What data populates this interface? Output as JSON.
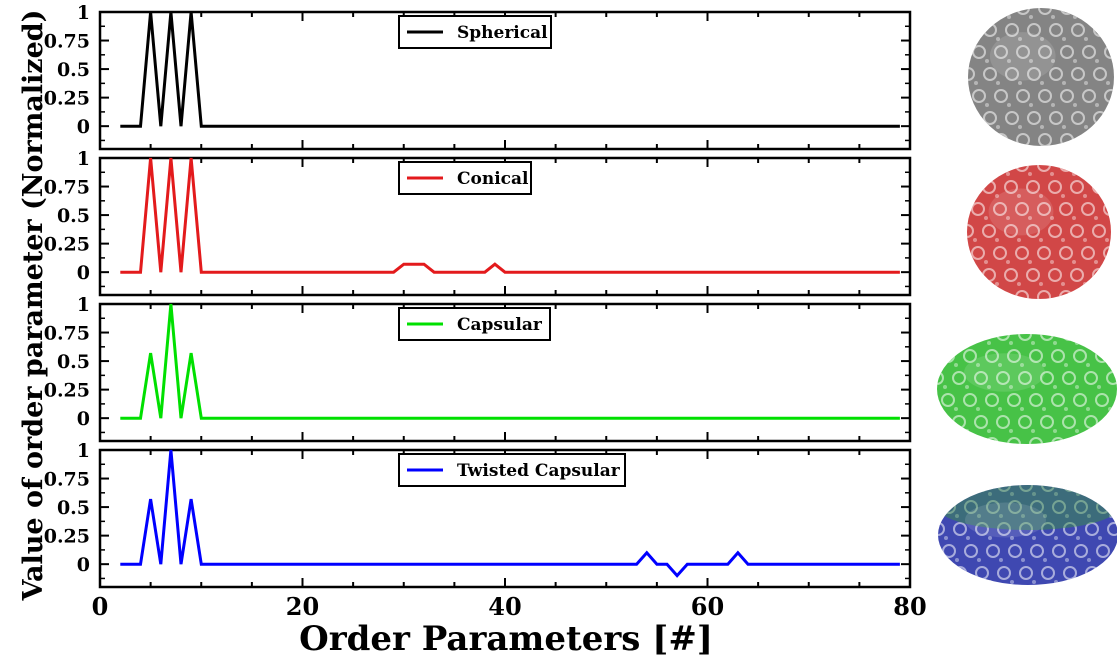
{
  "chart_data": [
    {
      "type": "line",
      "legend_placement": "top-center",
      "xlim": [
        0,
        80
      ],
      "ylim": [
        -0.2,
        1
      ],
      "yticks": [
        "0",
        "0.25",
        "0.5",
        "0.75",
        "1"
      ],
      "series": [
        {
          "name": "Spherical",
          "color": "#000000",
          "x": [
            2,
            4,
            5,
            6,
            7,
            8,
            9,
            10,
            79
          ],
          "y": [
            0,
            0,
            1,
            0,
            1,
            0,
            1,
            0,
            0
          ]
        }
      ]
    },
    {
      "type": "line",
      "legend_placement": "top-center",
      "xlim": [
        0,
        80
      ],
      "ylim": [
        -0.2,
        1
      ],
      "yticks": [
        "0",
        "0.25",
        "0.5",
        "0.75",
        "1"
      ],
      "series": [
        {
          "name": "Conical",
          "color": "#e31a1c",
          "x": [
            2,
            4,
            5,
            6,
            7,
            8,
            9,
            10,
            29,
            30,
            32,
            33,
            38,
            39,
            40,
            79
          ],
          "y": [
            0,
            0,
            1,
            0,
            1,
            0,
            1,
            0,
            0,
            0.07,
            0.07,
            0,
            0,
            0.07,
            0,
            0
          ]
        }
      ]
    },
    {
      "type": "line",
      "legend_placement": "top-center",
      "xlim": [
        0,
        80
      ],
      "ylim": [
        -0.2,
        1
      ],
      "yticks": [
        "0",
        "0.25",
        "0.5",
        "0.75",
        "1"
      ],
      "series": [
        {
          "name": "Capsular",
          "color": "#00e000",
          "x": [
            2,
            4,
            5,
            6,
            7,
            8,
            9,
            10,
            79
          ],
          "y": [
            0,
            0,
            0.57,
            0,
            1,
            0,
            0.57,
            0,
            0
          ]
        }
      ]
    },
    {
      "type": "line",
      "legend_placement": "top-center",
      "xlim": [
        0,
        80
      ],
      "ylim": [
        -0.2,
        1
      ],
      "yticks": [
        "0",
        "0.25",
        "0.5",
        "0.75",
        "1"
      ],
      "xticks": [
        "0",
        "20",
        "40",
        "60",
        "80"
      ],
      "series": [
        {
          "name": "Twisted Capsular",
          "color": "#0000ff",
          "x": [
            2,
            4,
            5,
            6,
            7,
            8,
            9,
            10,
            53,
            54,
            55,
            56,
            57,
            58,
            62,
            63,
            64,
            79
          ],
          "y": [
            0,
            0,
            0.57,
            0,
            1,
            0,
            0.57,
            0,
            0,
            0.1,
            0,
            0,
            -0.1,
            0,
            0,
            0.1,
            0,
            0
          ]
        }
      ]
    }
  ],
  "axes": {
    "xlabel": "Order Parameters [#]",
    "ylabel": "Value of order parameter (Normalized)"
  },
  "structures": [
    {
      "name": "spherical-structure",
      "color": "#777777",
      "shape": "sphere"
    },
    {
      "name": "conical-structure",
      "color": "#cc3333",
      "shape": "sphere"
    },
    {
      "name": "capsular-structure",
      "color": "#33bb33",
      "shape": "capsule"
    },
    {
      "name": "twisted-capsular-structure",
      "color": "#2a34a8",
      "shape": "capsule-mixed"
    }
  ]
}
